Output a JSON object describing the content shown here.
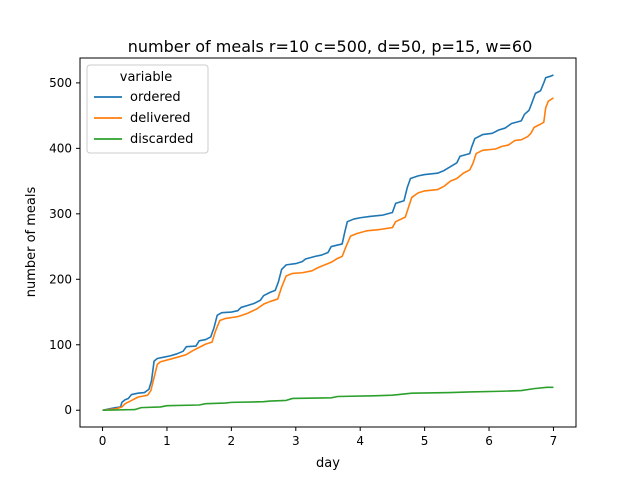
{
  "chart_data": {
    "type": "line",
    "title": "number of meals r=10 c=500, d=50, p=15, w=60",
    "xlabel": "day",
    "ylabel": "number of meals",
    "xlim": [
      -0.35,
      7.35
    ],
    "ylim": [
      -25.6,
      538
    ],
    "x_ticks": [
      0,
      1,
      2,
      3,
      4,
      5,
      6,
      7
    ],
    "y_ticks": [
      0,
      100,
      200,
      300,
      400,
      500
    ],
    "grid": false,
    "legend": {
      "title": "variable",
      "placement": "top-left"
    },
    "series": [
      {
        "name": "ordered",
        "color": "#1f77b4",
        "points": [
          [
            0.0,
            0
          ],
          [
            0.1,
            2
          ],
          [
            0.2,
            4
          ],
          [
            0.28,
            5
          ],
          [
            0.3,
            12
          ],
          [
            0.35,
            16
          ],
          [
            0.4,
            18
          ],
          [
            0.45,
            24
          ],
          [
            0.55,
            26
          ],
          [
            0.65,
            27
          ],
          [
            0.72,
            32
          ],
          [
            0.76,
            45
          ],
          [
            0.8,
            75
          ],
          [
            0.85,
            79
          ],
          [
            0.95,
            81
          ],
          [
            1.05,
            83
          ],
          [
            1.15,
            86
          ],
          [
            1.25,
            90
          ],
          [
            1.3,
            97
          ],
          [
            1.45,
            98
          ],
          [
            1.5,
            106
          ],
          [
            1.6,
            108
          ],
          [
            1.68,
            112
          ],
          [
            1.73,
            126
          ],
          [
            1.78,
            145
          ],
          [
            1.85,
            149
          ],
          [
            2.0,
            150
          ],
          [
            2.1,
            152
          ],
          [
            2.15,
            157
          ],
          [
            2.25,
            160
          ],
          [
            2.35,
            163
          ],
          [
            2.45,
            168
          ],
          [
            2.5,
            175
          ],
          [
            2.6,
            180
          ],
          [
            2.68,
            183
          ],
          [
            2.73,
            196
          ],
          [
            2.78,
            215
          ],
          [
            2.85,
            222
          ],
          [
            3.0,
            224
          ],
          [
            3.1,
            227
          ],
          [
            3.15,
            231
          ],
          [
            3.3,
            235
          ],
          [
            3.4,
            237
          ],
          [
            3.5,
            241
          ],
          [
            3.55,
            250
          ],
          [
            3.72,
            254
          ],
          [
            3.76,
            272
          ],
          [
            3.8,
            288
          ],
          [
            3.9,
            292
          ],
          [
            4.0,
            294
          ],
          [
            4.15,
            296
          ],
          [
            4.35,
            298
          ],
          [
            4.5,
            302
          ],
          [
            4.55,
            316
          ],
          [
            4.68,
            320
          ],
          [
            4.73,
            340
          ],
          [
            4.78,
            354
          ],
          [
            4.9,
            358
          ],
          [
            5.0,
            360
          ],
          [
            5.2,
            362
          ],
          [
            5.3,
            366
          ],
          [
            5.4,
            372
          ],
          [
            5.5,
            378
          ],
          [
            5.55,
            388
          ],
          [
            5.7,
            392
          ],
          [
            5.73,
            402
          ],
          [
            5.78,
            415
          ],
          [
            5.9,
            421
          ],
          [
            6.05,
            423
          ],
          [
            6.15,
            428
          ],
          [
            6.25,
            431
          ],
          [
            6.35,
            438
          ],
          [
            6.5,
            442
          ],
          [
            6.55,
            452
          ],
          [
            6.62,
            458
          ],
          [
            6.66,
            468
          ],
          [
            6.72,
            484
          ],
          [
            6.8,
            488
          ],
          [
            6.85,
            500
          ],
          [
            6.88,
            508
          ],
          [
            6.95,
            510
          ],
          [
            7.0,
            512
          ]
        ]
      },
      {
        "name": "delivered",
        "color": "#ff7f0e",
        "points": [
          [
            0.0,
            0
          ],
          [
            0.1,
            1
          ],
          [
            0.2,
            2
          ],
          [
            0.3,
            5
          ],
          [
            0.35,
            10
          ],
          [
            0.45,
            15
          ],
          [
            0.55,
            20
          ],
          [
            0.7,
            23
          ],
          [
            0.75,
            30
          ],
          [
            0.8,
            50
          ],
          [
            0.85,
            70
          ],
          [
            0.9,
            74
          ],
          [
            1.05,
            78
          ],
          [
            1.2,
            82
          ],
          [
            1.3,
            85
          ],
          [
            1.4,
            91
          ],
          [
            1.5,
            96
          ],
          [
            1.6,
            101
          ],
          [
            1.7,
            104
          ],
          [
            1.75,
            120
          ],
          [
            1.82,
            137
          ],
          [
            1.9,
            140
          ],
          [
            2.1,
            143
          ],
          [
            2.25,
            148
          ],
          [
            2.4,
            155
          ],
          [
            2.5,
            162
          ],
          [
            2.6,
            166
          ],
          [
            2.72,
            170
          ],
          [
            2.78,
            188
          ],
          [
            2.85,
            205
          ],
          [
            2.95,
            209
          ],
          [
            3.1,
            210
          ],
          [
            3.25,
            213
          ],
          [
            3.35,
            218
          ],
          [
            3.45,
            222
          ],
          [
            3.55,
            226
          ],
          [
            3.65,
            232
          ],
          [
            3.72,
            235
          ],
          [
            3.78,
            250
          ],
          [
            3.85,
            266
          ],
          [
            3.95,
            270
          ],
          [
            4.1,
            274
          ],
          [
            4.3,
            276
          ],
          [
            4.5,
            279
          ],
          [
            4.55,
            288
          ],
          [
            4.7,
            295
          ],
          [
            4.75,
            310
          ],
          [
            4.8,
            325
          ],
          [
            4.9,
            332
          ],
          [
            5.0,
            335
          ],
          [
            5.2,
            337
          ],
          [
            5.3,
            342
          ],
          [
            5.4,
            350
          ],
          [
            5.5,
            354
          ],
          [
            5.6,
            362
          ],
          [
            5.7,
            367
          ],
          [
            5.75,
            377
          ],
          [
            5.8,
            392
          ],
          [
            5.9,
            397
          ],
          [
            6.1,
            399
          ],
          [
            6.2,
            403
          ],
          [
            6.3,
            405
          ],
          [
            6.4,
            412
          ],
          [
            6.5,
            413
          ],
          [
            6.6,
            418
          ],
          [
            6.65,
            423
          ],
          [
            6.7,
            432
          ],
          [
            6.8,
            437
          ],
          [
            6.85,
            440
          ],
          [
            6.88,
            462
          ],
          [
            6.92,
            472
          ],
          [
            7.0,
            477
          ]
        ]
      },
      {
        "name": "discarded",
        "color": "#2ca02c",
        "points": [
          [
            0.0,
            0
          ],
          [
            0.5,
            1
          ],
          [
            0.6,
            4
          ],
          [
            0.9,
            5
          ],
          [
            1.0,
            7
          ],
          [
            1.5,
            8
          ],
          [
            1.6,
            10
          ],
          [
            1.9,
            11
          ],
          [
            2.0,
            12
          ],
          [
            2.5,
            13
          ],
          [
            2.6,
            14
          ],
          [
            2.85,
            15
          ],
          [
            2.95,
            18
          ],
          [
            3.55,
            19
          ],
          [
            3.65,
            21
          ],
          [
            4.2,
            22
          ],
          [
            4.5,
            23
          ],
          [
            4.8,
            26
          ],
          [
            5.4,
            27
          ],
          [
            5.7,
            28
          ],
          [
            6.2,
            29
          ],
          [
            6.5,
            30
          ],
          [
            6.7,
            33
          ],
          [
            6.9,
            35
          ],
          [
            7.0,
            35
          ]
        ]
      }
    ]
  }
}
